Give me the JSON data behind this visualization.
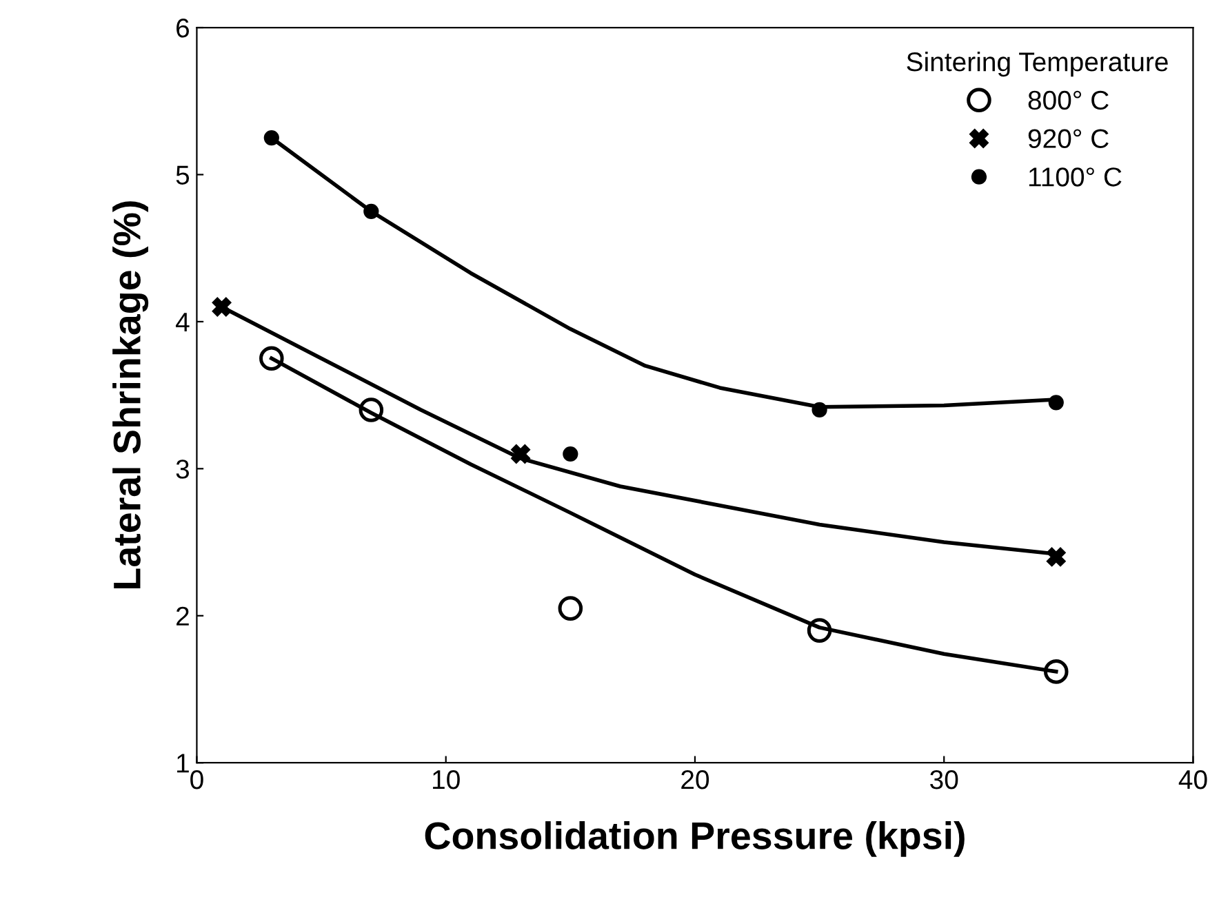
{
  "chart_data": {
    "type": "scatter",
    "xlabel": "Consolidation Pressure (kpsi)",
    "ylabel": "Lateral Shrinkage (%)",
    "legend_title": "Sintering Temperature",
    "legend": "top right",
    "grid": false,
    "xlim": [
      0,
      40
    ],
    "ylim": [
      1,
      6
    ],
    "xticks": [
      0,
      10,
      20,
      30,
      40
    ],
    "yticks": [
      1,
      2,
      3,
      4,
      5,
      6
    ],
    "series": [
      {
        "name": "800° C",
        "color": "#000000",
        "marker": "circle",
        "x": [
          3,
          7,
          15,
          25,
          34.5
        ],
        "values": [
          3.75,
          3.4,
          2.05,
          1.9,
          1.62
        ]
      },
      {
        "name": "920° C",
        "color": "#000000",
        "marker": "cross",
        "x": [
          1,
          13,
          34.5
        ],
        "values": [
          4.1,
          3.1,
          2.4
        ]
      },
      {
        "name": "1100° C",
        "color": "#000000",
        "marker": "dot",
        "x": [
          3,
          7,
          15,
          25,
          34.5
        ],
        "values": [
          5.25,
          4.75,
          3.1,
          3.4,
          3.45
        ]
      },
      {
        "type": "line",
        "color": "#000000",
        "marker": "none",
        "x": [
          3,
          7,
          11,
          15,
          20,
          25,
          30,
          34.5
        ],
        "values": [
          3.75,
          3.38,
          3.03,
          2.7,
          2.28,
          1.92,
          1.74,
          1.62
        ]
      },
      {
        "type": "line",
        "color": "#000000",
        "marker": "none",
        "x": [
          1,
          5,
          9,
          13,
          17,
          21,
          25,
          30,
          34.5
        ],
        "values": [
          4.1,
          3.75,
          3.4,
          3.07,
          2.88,
          2.75,
          2.62,
          2.5,
          2.42
        ]
      },
      {
        "type": "line",
        "color": "#000000",
        "marker": "none",
        "x": [
          3,
          7,
          11,
          15,
          18,
          21,
          25,
          30,
          34.5
        ],
        "values": [
          5.25,
          4.75,
          4.33,
          3.95,
          3.7,
          3.55,
          3.42,
          3.43,
          3.47
        ]
      }
    ]
  }
}
